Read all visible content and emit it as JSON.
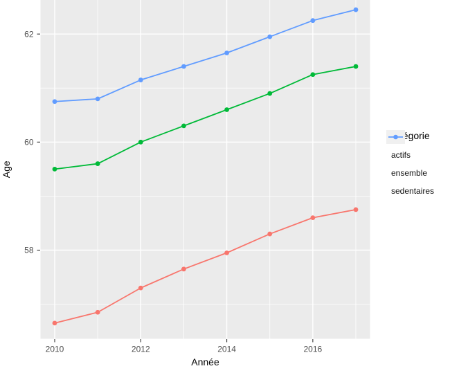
{
  "chart_data": {
    "type": "line",
    "title": "",
    "xlabel": "Année",
    "ylabel": "Age",
    "x": [
      2010,
      2011,
      2012,
      2013,
      2014,
      2015,
      2016,
      2017
    ],
    "series": [
      {
        "name": "actifs",
        "color": "#F8766D",
        "values": [
          56.65,
          56.85,
          57.3,
          57.65,
          57.95,
          58.3,
          58.6,
          58.75
        ]
      },
      {
        "name": "ensemble",
        "color": "#00BA38",
        "values": [
          59.5,
          59.6,
          60.0,
          60.3,
          60.6,
          60.9,
          61.25,
          61.4
        ]
      },
      {
        "name": "sedentaires",
        "color": "#619CFF",
        "values": [
          60.75,
          60.8,
          61.15,
          61.4,
          61.65,
          61.95,
          62.25,
          62.45
        ]
      }
    ],
    "x_major_ticks": [
      2010,
      2012,
      2014,
      2016
    ],
    "x_tick_labels": [
      "2010",
      "2012",
      "2014",
      "2016"
    ],
    "x_minor_gridlines": [
      2011,
      2013,
      2015,
      2017
    ],
    "y_major_ticks": [
      58,
      60,
      62
    ],
    "y_tick_labels": [
      "58",
      "60",
      "62"
    ],
    "y_minor_gridlines": [
      57,
      59,
      61
    ],
    "xlim": [
      2009.67,
      2017.33
    ],
    "ylim": [
      56.36,
      62.63
    ],
    "grid": true,
    "legend_position": "right",
    "legend": {
      "title": "Catégorie",
      "entries": [
        "actifs",
        "ensemble",
        "sedentaires"
      ]
    },
    "colors": {
      "panel_background": "#EBEBEB",
      "grid": "#FFFFFF",
      "tick_label": "#4D4D4D",
      "axis_title": "#000000",
      "tick_mark": "#333333",
      "legend_key_background": "#F0F0F0"
    }
  }
}
